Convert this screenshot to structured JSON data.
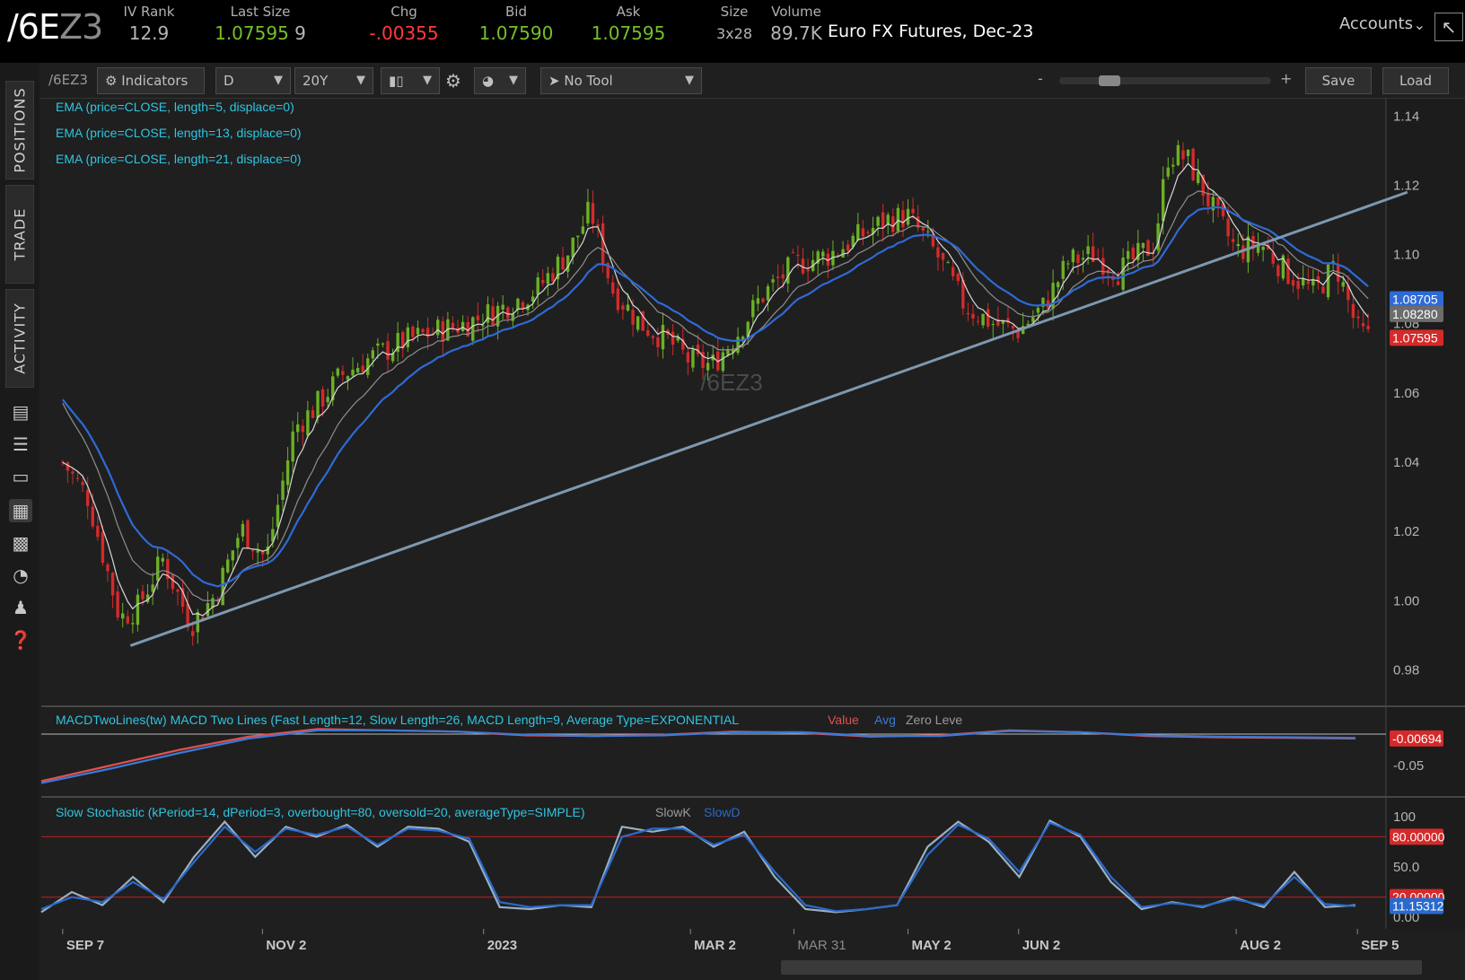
{
  "header": {
    "symbol_main": "/6E",
    "symbol_dim": "Z3",
    "iv_rank": {
      "label": "IV Rank",
      "value": "12.9"
    },
    "last_size": {
      "label": "Last Size",
      "value": "1.07595",
      "size": "9"
    },
    "chg": {
      "label": "Chg",
      "value": "-.00355"
    },
    "bid": {
      "label": "Bid",
      "value": "1.07590"
    },
    "ask": {
      "label": "Ask",
      "value": "1.07595"
    },
    "size": {
      "label": "Size",
      "value": "3x28"
    },
    "volume": {
      "label": "Volume",
      "value": "89.7K"
    },
    "description": "Euro FX Futures, Dec-23",
    "accounts": "Accounts"
  },
  "left_rail": {
    "tabs": [
      "POSITIONS",
      "TRADE",
      "ACTIVITY"
    ],
    "icons": [
      "monitor-icon",
      "list-icon",
      "tv-icon",
      "chart-icon",
      "grid-icon",
      "gauge-icon",
      "users-icon",
      "help-icon"
    ]
  },
  "toolbar": {
    "symbol": "/6EZ3",
    "indicators": "Indicators",
    "aggregation": "D",
    "timeframe": "20Y",
    "drawing_tool": "No Tool",
    "zoom_minus": "-",
    "zoom_plus": "+",
    "save": "Save",
    "load": "Load"
  },
  "studies": {
    "ema": [
      "EMA (price=CLOSE, length=5, displace=0)",
      "EMA (price=CLOSE, length=13, displace=0)",
      "EMA (price=CLOSE, length=21, displace=0)"
    ],
    "macd_label": "MACDTwoLines(tw) MACD Two Lines (Fast Length=12, Slow Length=26, MACD Length=9, Average Type=EXPONENTIAL",
    "macd_value": "Value",
    "macd_avg": "Avg",
    "macd_zero": "Zero Leve",
    "stoch_label": "Slow Stochastic (kPeriod=14, dPeriod=3, overbought=80, oversold=20, averageType=SIMPLE)",
    "stoch_k": "SlowK",
    "stoch_d": "SlowD"
  },
  "watermark": "/6EZ3",
  "colors": {
    "up": "#6bb026",
    "down": "#d42a2a",
    "ema5": "#d8d8d8",
    "ema13": "#8f8f8f",
    "ema21": "#2e6ad6",
    "trendline": "#7d98b0",
    "macd_value": "#e35050",
    "macd_avg": "#3a7ad8",
    "stoch_k": "#9ab0c2",
    "stoch_d": "#2a6acc",
    "study_text": "#2ec5e0"
  },
  "chart_data": [
    {
      "type": "candlestick",
      "panel": "price",
      "ylim": [
        0.97,
        1.145
      ],
      "yticks": [
        "1.14",
        "1.12",
        "1.10",
        "1.08",
        "1.06",
        "1.04",
        "1.02",
        "1.00",
        "0.98"
      ],
      "xticks": [
        "SEP 7",
        "NOV 2",
        "2023",
        "MAR 2",
        "MAR 31",
        "MAY 2",
        "JUN 2",
        "AUG 2",
        "SEP 5"
      ],
      "price_labels": [
        {
          "text": "1.08705",
          "value": 1.08705,
          "color": "#2e6ad6"
        },
        {
          "text": "1.08280",
          "value": 1.0828,
          "color": "#8f8f8f"
        },
        {
          "text": "1.07595",
          "value": 1.07595,
          "color": "#d42a2a"
        }
      ],
      "close_path": [
        {
          "date": "2022-09-07",
          "close": 1.04
        },
        {
          "date": "2022-09-14",
          "close": 1.03
        },
        {
          "date": "2022-09-23",
          "close": 0.995
        },
        {
          "date": "2022-09-28",
          "close": 0.998
        },
        {
          "date": "2022-10-05",
          "close": 1.012
        },
        {
          "date": "2022-10-13",
          "close": 0.993
        },
        {
          "date": "2022-10-20",
          "close": 1.002
        },
        {
          "date": "2022-10-27",
          "close": 1.021
        },
        {
          "date": "2022-11-03",
          "close": 1.012
        },
        {
          "date": "2022-11-11",
          "close": 1.05
        },
        {
          "date": "2022-11-16",
          "close": 1.055
        },
        {
          "date": "2022-11-24",
          "close": 1.065
        },
        {
          "date": "2022-12-02",
          "close": 1.07
        },
        {
          "date": "2022-12-12",
          "close": 1.075
        },
        {
          "date": "2022-12-21",
          "close": 1.078
        },
        {
          "date": "2022-12-29",
          "close": 1.08
        },
        {
          "date": "2023-01-09",
          "close": 1.085
        },
        {
          "date": "2023-01-18",
          "close": 1.09
        },
        {
          "date": "2023-01-27",
          "close": 1.101
        },
        {
          "date": "2023-02-02",
          "close": 1.113
        },
        {
          "date": "2023-02-08",
          "close": 1.09
        },
        {
          "date": "2023-02-16",
          "close": 1.08
        },
        {
          "date": "2023-02-24",
          "close": 1.075
        },
        {
          "date": "2023-03-02",
          "close": 1.069
        },
        {
          "date": "2023-03-08",
          "close": 1.068
        },
        {
          "date": "2023-03-15",
          "close": 1.077
        },
        {
          "date": "2023-03-22",
          "close": 1.088
        },
        {
          "date": "2023-03-31",
          "close": 1.097
        },
        {
          "date": "2023-04-10",
          "close": 1.1
        },
        {
          "date": "2023-04-18",
          "close": 1.105
        },
        {
          "date": "2023-04-26",
          "close": 1.11
        },
        {
          "date": "2023-05-02",
          "close": 1.111
        },
        {
          "date": "2023-05-10",
          "close": 1.1
        },
        {
          "date": "2023-05-18",
          "close": 1.085
        },
        {
          "date": "2023-05-26",
          "close": 1.08
        },
        {
          "date": "2023-06-02",
          "close": 1.078
        },
        {
          "date": "2023-06-09",
          "close": 1.085
        },
        {
          "date": "2023-06-16",
          "close": 1.098
        },
        {
          "date": "2023-06-23",
          "close": 1.1
        },
        {
          "date": "2023-06-30",
          "close": 1.095
        },
        {
          "date": "2023-07-10",
          "close": 1.103
        },
        {
          "date": "2023-07-14",
          "close": 1.129
        },
        {
          "date": "2023-07-19",
          "close": 1.128
        },
        {
          "date": "2023-07-27",
          "close": 1.112
        },
        {
          "date": "2023-08-02",
          "close": 1.101
        },
        {
          "date": "2023-08-09",
          "close": 1.103
        },
        {
          "date": "2023-08-16",
          "close": 1.095
        },
        {
          "date": "2023-08-24",
          "close": 1.089
        },
        {
          "date": "2023-08-30",
          "close": 1.097
        },
        {
          "date": "2023-09-05",
          "close": 1.078
        },
        {
          "date": "2023-09-08",
          "close": 1.076
        }
      ],
      "trendline": {
        "from": {
          "date": "2022-09-26",
          "price": 0.987
        },
        "to": {
          "date": "2023-09-19",
          "price": 1.118
        }
      }
    },
    {
      "type": "line",
      "panel": "macd",
      "ytick": "-0.05",
      "last_value": "-0.00694",
      "series": [
        {
          "name": "Value",
          "values": [
            -0.075,
            -0.05,
            -0.025,
            -0.004,
            0.008,
            0.006,
            0.004,
            -0.002,
            -0.003,
            -0.001,
            0.004,
            0.002,
            -0.004,
            -0.002,
            0.006,
            0.003,
            -0.003,
            -0.005,
            -0.006,
            -0.007
          ]
        },
        {
          "name": "Avg",
          "values": [
            -0.078,
            -0.055,
            -0.03,
            -0.007,
            0.006,
            0.006,
            0.004,
            -0.001,
            -0.003,
            -0.002,
            0.003,
            0.003,
            -0.003,
            -0.003,
            0.005,
            0.003,
            -0.002,
            -0.004,
            -0.005,
            -0.006
          ]
        }
      ]
    },
    {
      "type": "line",
      "panel": "stochastic",
      "yticks": [
        "100",
        "50.0",
        "0.00"
      ],
      "overbought_label": "80.00000",
      "oversold_label": "20.00000",
      "last_value": "11.15312",
      "series": [
        {
          "name": "SlowK",
          "values": [
            5,
            25,
            12,
            40,
            15,
            60,
            95,
            60,
            90,
            80,
            92,
            70,
            90,
            88,
            75,
            10,
            8,
            12,
            10,
            90,
            85,
            90,
            70,
            85,
            40,
            8,
            5,
            8,
            12,
            70,
            95,
            75,
            40,
            96,
            80,
            35,
            8,
            15,
            10,
            20,
            10,
            45,
            10,
            12
          ]
        },
        {
          "name": "SlowD",
          "values": [
            8,
            20,
            15,
            35,
            18,
            55,
            90,
            65,
            88,
            82,
            90,
            72,
            88,
            86,
            78,
            15,
            10,
            12,
            12,
            80,
            88,
            88,
            72,
            82,
            45,
            12,
            6,
            8,
            12,
            62,
            92,
            78,
            45,
            94,
            82,
            40,
            10,
            14,
            11,
            18,
            12,
            40,
            13,
            11
          ]
        }
      ]
    }
  ]
}
